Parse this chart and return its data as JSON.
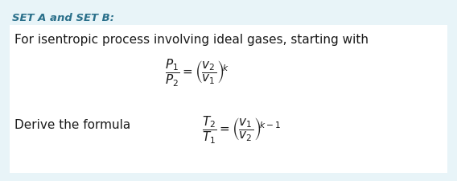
{
  "background_outer": "#e8f4f8",
  "background_inner": "#ffffff",
  "title_text": "SET A and SET B:",
  "title_color": "#2a6f8a",
  "title_fontsize": 9.5,
  "body_text": "For isentropic process involving ideal gases, starting with",
  "body_fontsize": 11,
  "body_color": "#1a1a1a",
  "formula1": "$\\dfrac{P_1}{P_2} = \\left(\\dfrac{v_2}{v_1}\\right)^{\\!k}$",
  "formula2": "$\\dfrac{T_2}{T_1} = \\left(\\dfrac{v_1}{v_2}\\right)^{\\!k-1}$",
  "derive_text": "Derive the formula",
  "formula_color": "#1a1a1a",
  "formula_fontsize": 11,
  "derive_fontsize": 11,
  "derive_color": "#1a1a1a",
  "figsize": [
    5.68,
    2.26
  ],
  "dpi": 100
}
